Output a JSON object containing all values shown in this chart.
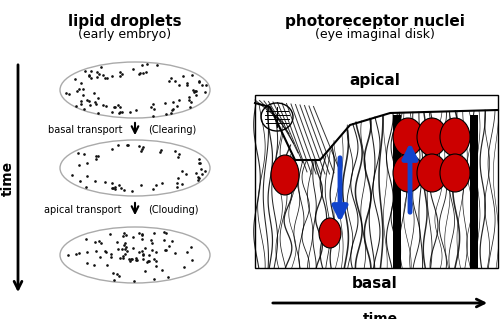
{
  "title_left": "lipid droplets",
  "subtitle_left": "(early embryo)",
  "title_right": "photoreceptor nuclei",
  "subtitle_right": "(eye imaginal disk)",
  "label_time_left": "time",
  "label_time_right": "time",
  "label_apical": "apical",
  "label_basal": "basal",
  "label_basal_transport": "basal transport",
  "label_clearing": "(Clearing)",
  "label_apical_transport": "apical transport",
  "label_clouding": "(Clouding)",
  "bg_color": "#ffffff",
  "dot_color": "#111111",
  "ellipse_edge_color": "#aaaaaa",
  "arrow_color": "#000000",
  "blue_arrow_color": "#1144cc",
  "red_fill_color": "#cc0000",
  "figsize": [
    5.0,
    3.19
  ],
  "dpi": 100
}
